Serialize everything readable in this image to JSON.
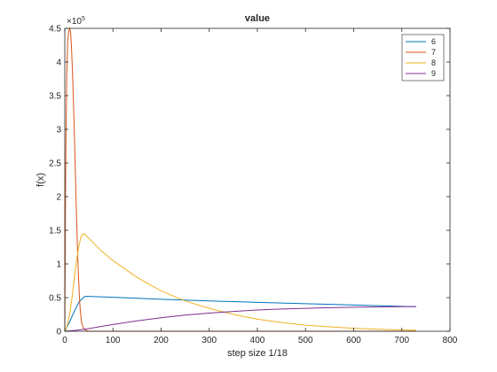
{
  "chart_data": {
    "type": "line",
    "title": "value",
    "xlabel": "step size 1/18",
    "ylabel": "f(x)",
    "xlim": [
      0,
      800
    ],
    "ylim": [
      0,
      450000
    ],
    "x_ticks": [
      0,
      100,
      200,
      300,
      400,
      500,
      600,
      700,
      800
    ],
    "x_tick_labels": [
      "0",
      "100",
      "200",
      "300",
      "400",
      "500",
      "600",
      "700",
      "800"
    ],
    "y_ticks": [
      0,
      50000,
      100000,
      150000,
      200000,
      250000,
      300000,
      350000,
      400000,
      450000
    ],
    "y_tick_labels": [
      "0",
      "0.5",
      "1",
      "1.5",
      "2",
      "2.5",
      "3",
      "3.5",
      "4",
      "4.5"
    ],
    "y_exponent_base": "×10",
    "y_exponent_power": "5",
    "grid": false,
    "legend_position": "top-right",
    "series": [
      {
        "name": "6",
        "color": "#0072BD",
        "x": [
          0,
          10,
          20,
          30,
          40,
          45,
          60,
          100,
          200,
          300,
          400,
          500,
          600,
          700,
          730
        ],
        "y": [
          0,
          14000,
          30000,
          44000,
          51000,
          52000,
          51500,
          50500,
          47500,
          45000,
          43000,
          41000,
          39000,
          37000,
          36500
        ]
      },
      {
        "name": "7",
        "color": "#D95319",
        "x": [
          0,
          2,
          4,
          6,
          8,
          10,
          12,
          14,
          16,
          18,
          20,
          22,
          24,
          26,
          28,
          30,
          32,
          35,
          40,
          45,
          50,
          60,
          80,
          100,
          200,
          300,
          400,
          500,
          600,
          700,
          730
        ],
        "y": [
          0,
          250000,
          380000,
          430000,
          445000,
          450000,
          445000,
          420000,
          385000,
          340000,
          290000,
          235000,
          180000,
          130000,
          90000,
          55000,
          32000,
          12000,
          3000,
          800,
          200,
          0,
          0,
          0,
          0,
          0,
          0,
          0,
          0,
          0,
          0
        ]
      },
      {
        "name": "8",
        "color": "#EDB120",
        "x": [
          0,
          5,
          10,
          15,
          20,
          25,
          30,
          35,
          40,
          50,
          75,
          100,
          150,
          200,
          250,
          300,
          350,
          400,
          450,
          500,
          550,
          600,
          650,
          700,
          730
        ],
        "y": [
          0,
          8000,
          25000,
          50000,
          80000,
          108000,
          130000,
          143000,
          145000,
          138000,
          120000,
          105000,
          80000,
          60000,
          45000,
          34000,
          25000,
          18000,
          13000,
          9000,
          6500,
          4500,
          3000,
          2000,
          1500
        ]
      },
      {
        "name": "9",
        "color": "#7E2F8E",
        "x": [
          0,
          25,
          50,
          75,
          100,
          150,
          200,
          250,
          300,
          350,
          400,
          450,
          500,
          550,
          600,
          650,
          700,
          730
        ],
        "y": [
          0,
          1500,
          4000,
          7000,
          10000,
          15500,
          20000,
          24000,
          27000,
          29500,
          31500,
          33000,
          34000,
          35000,
          35700,
          36200,
          36500,
          36600
        ]
      }
    ]
  }
}
